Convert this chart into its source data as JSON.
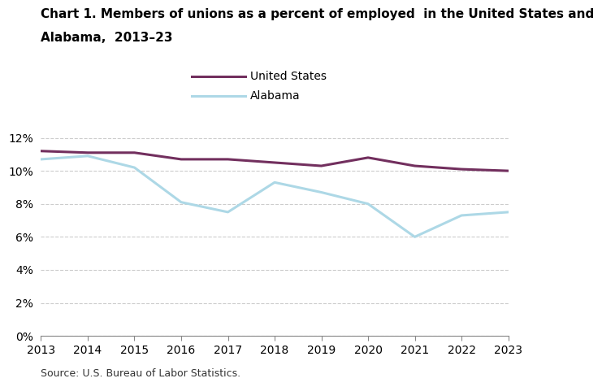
{
  "title_line1": "Chart 1. Members of unions as a percent of employed  in the United States and",
  "title_line2": "Alabama,  2013–23",
  "years": [
    2013,
    2014,
    2015,
    2016,
    2017,
    2018,
    2019,
    2020,
    2021,
    2022,
    2023
  ],
  "united_states": [
    11.2,
    11.1,
    11.1,
    10.7,
    10.7,
    10.5,
    10.3,
    10.8,
    10.3,
    10.1,
    10.0
  ],
  "alabama": [
    10.7,
    10.9,
    10.2,
    8.1,
    7.5,
    9.3,
    8.7,
    8.0,
    6.0,
    7.3,
    7.5
  ],
  "us_color": "#722F5E",
  "al_color": "#ADD8E6",
  "line_width": 2.2,
  "ylim": [
    0,
    13
  ],
  "yticks": [
    0,
    2,
    4,
    6,
    8,
    10,
    12
  ],
  "ytick_labels": [
    "0%",
    "2%",
    "4%",
    "6%",
    "8%",
    "10%",
    "12%"
  ],
  "legend_us": "United States",
  "legend_al": "Alabama",
  "source_text": "Source: U.S. Bureau of Labor Statistics.",
  "grid_color": "#cccccc",
  "background_color": "#ffffff",
  "title_fontsize": 11,
  "axis_fontsize": 10,
  "legend_fontsize": 10
}
